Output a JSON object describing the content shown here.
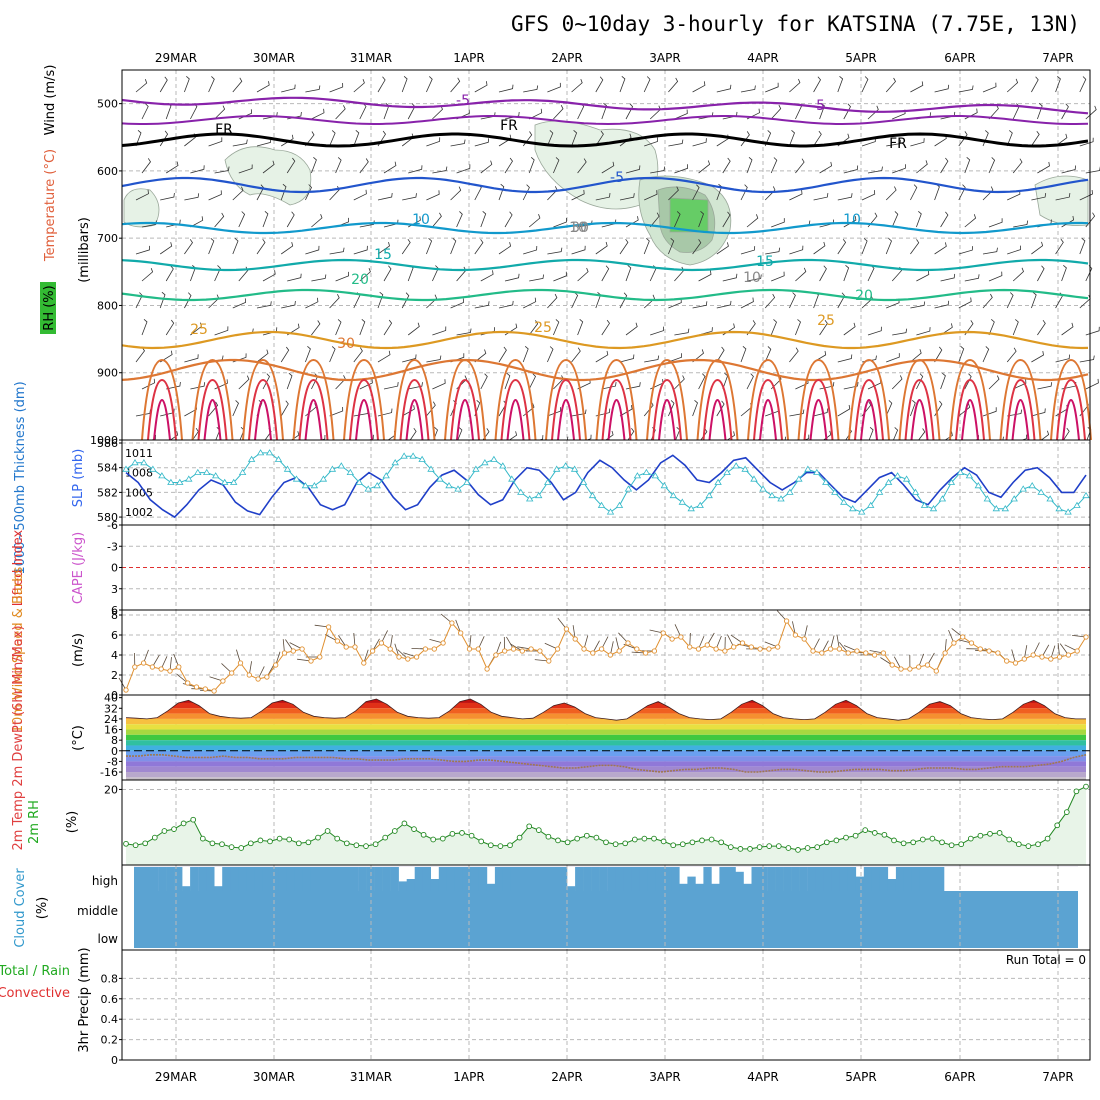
{
  "title": "GFS 0~10day 3-hourly for KATSINA (7.75E, 13N)",
  "dates": [
    "29MAR",
    "30MAR",
    "31MAR",
    "1APR",
    "2APR",
    "3APR",
    "4APR",
    "5APR",
    "6APR",
    "7APR"
  ],
  "colors": {
    "temperature": "#e0603c",
    "wind": "#000000",
    "rh_box": "#33bb33",
    "thickness": "#2277cc",
    "slp": "#3366ee",
    "lifted_index": "#e03030",
    "cape": "#cc55cc",
    "wind10m": "#e08a20",
    "temp_label": "#e04040",
    "rh2m": "#22aa22",
    "cloud": "#3399cc",
    "precip_total": "#22aa22",
    "precip_conv": "#e03030"
  },
  "chart_data": [
    {
      "type": "contour",
      "panel": "upper-air",
      "ylabel": "(millibars)",
      "side_labels": {
        "temperature": "Temperature (°C)",
        "wind": "Wind (m/s)",
        "rh": "RH (%)"
      },
      "y_ticks": [
        "500",
        "600",
        "700",
        "800",
        "900",
        "1000"
      ],
      "ylim": [
        450,
        1000
      ],
      "isotherm_labels": [
        "-5",
        "-5",
        "-5",
        "FR",
        "FR",
        "FR",
        "-5",
        "10",
        "10",
        "10",
        "15",
        "15",
        "20",
        "20",
        "25",
        "25",
        "25",
        "30",
        "10",
        "30"
      ],
      "isotherms_c": [
        -5,
        0,
        5,
        10,
        15,
        20,
        25,
        30
      ],
      "rh_shading": [
        "70",
        "80",
        "90"
      ]
    },
    {
      "type": "line",
      "panel": "thickness-slp",
      "left_label": "1000~500mb Thickness (dm)",
      "right_label": "SLP (mb)",
      "left_ticks": [
        "586",
        "584",
        "582",
        "580"
      ],
      "right_ticks": [
        "1011",
        "1008",
        "1005",
        "1002"
      ],
      "thickness_dm": [
        583.6,
        582.8,
        581.4,
        580.6,
        580.0,
        581.0,
        582.2,
        583.0,
        582.6,
        581.2,
        580.5,
        580.2,
        581.6,
        582.8,
        583.2,
        582.4,
        581.0,
        580.6,
        581.0,
        582.8,
        583.6,
        583.0,
        581.6,
        580.6,
        581.0,
        582.4,
        583.4,
        583.8,
        583.0,
        581.8,
        581.0,
        581.4,
        583.0,
        584.0,
        583.8,
        582.8,
        581.4,
        582.0,
        583.6,
        584.6,
        584.0,
        583.0,
        582.2,
        583.0,
        584.4,
        585.0,
        584.2,
        583.0,
        582.8,
        583.6,
        584.6,
        584.8,
        583.8,
        582.8,
        582.2,
        582.8,
        583.6,
        583.6,
        582.6,
        581.6,
        581.2,
        582.2,
        583.2,
        583.6,
        582.6,
        581.4,
        581.0,
        582.2,
        583.2,
        584.0,
        583.4,
        582.0,
        581.6,
        582.8,
        583.8,
        584.0,
        583.2,
        582.0,
        582.0,
        583.4
      ],
      "slp_mb": [
        1008.5,
        1009.5,
        1009.5,
        1008.5,
        1007.5,
        1006.5,
        1006.5,
        1007.0,
        1008.0,
        1008.0,
        1007.5,
        1006.5,
        1006.5,
        1008.0,
        1010.0,
        1011.0,
        1011.0,
        1010.0,
        1008.5,
        1007.0,
        1006.0,
        1006.0,
        1007.0,
        1008.5,
        1009.0,
        1008.0,
        1006.5,
        1005.5,
        1006.0,
        1007.5,
        1009.5,
        1010.5,
        1010.5,
        1010.0,
        1008.5,
        1007.0,
        1006.0,
        1005.5,
        1006.5,
        1008.5,
        1009.5,
        1010.0,
        1009.0,
        1007.0,
        1005.0,
        1004.0,
        1004.5,
        1006.5,
        1008.5,
        1009.0,
        1008.5,
        1006.5,
        1004.5,
        1003.0,
        1002.0,
        1003.0,
        1005.5,
        1007.5,
        1008.0,
        1007.5,
        1006.0,
        1004.5,
        1003.5,
        1002.5,
        1003.0,
        1004.5,
        1006.5,
        1008.0,
        1009.0,
        1008.5,
        1007.0,
        1005.5,
        1004.5,
        1004.0,
        1005.0,
        1007.0,
        1008.5,
        1008.0,
        1006.5,
        1005.0,
        1003.5,
        1002.5,
        1002.0,
        1003.0,
        1005.0,
        1006.5,
        1007.5,
        1007.0,
        1005.0,
        1003.0,
        1002.5,
        1004.0,
        1006.5,
        1008.0,
        1007.5,
        1006.0,
        1004.0,
        1002.5,
        1002.5,
        1004.0,
        1005.5,
        1006.0,
        1005.0,
        1004.0,
        1002.5,
        1002.0,
        1003.0,
        1004.5
      ]
    },
    {
      "type": "line",
      "panel": "stability",
      "left_label": "Lifted Index",
      "right_label": "CAPE (J/kg)",
      "y_ticks": [
        "-6",
        "-3",
        "0",
        "3",
        "6"
      ],
      "ylim": [
        -6,
        6
      ],
      "lifted_index": [],
      "cape": []
    },
    {
      "type": "line",
      "panel": "wind10m",
      "left_label": "10m Wind Speed & Barbs",
      "unit": "(m/s)",
      "y_ticks": [
        "0",
        "2",
        "4",
        "6",
        "8"
      ],
      "ylim": [
        0,
        8.5
      ],
      "speed_ms": [
        0.5,
        2.8,
        3.2,
        2.8,
        2.6,
        2.4,
        2.8,
        1.2,
        0.8,
        0.6,
        0.4,
        1.4,
        2.2,
        3.2,
        2.0,
        1.6,
        1.8,
        3.0,
        4.2,
        4.4,
        4.6,
        3.4,
        3.8,
        6.8,
        5.4,
        4.8,
        4.8,
        3.2,
        4.4,
        5.2,
        4.6,
        3.8,
        3.6,
        3.8,
        4.6,
        4.6,
        5.2,
        7.2,
        6.2,
        4.6,
        4.6,
        2.6,
        4.0,
        4.4,
        4.6,
        4.4,
        4.6,
        4.4,
        3.4,
        4.6,
        6.6,
        5.6,
        4.6,
        4.2,
        4.6,
        4.0,
        4.4,
        5.2,
        4.6,
        4.2,
        4.4,
        6.2,
        5.6,
        5.8,
        4.8,
        4.6,
        5.0,
        4.6,
        4.4,
        4.8,
        5.2,
        4.8,
        4.6,
        4.6,
        4.8,
        7.4,
        6.0,
        5.6,
        4.4,
        4.2,
        4.6,
        4.6,
        4.2,
        4.4,
        4.2,
        4.0,
        4.2,
        3.0,
        2.6,
        2.6,
        2.8,
        3.0,
        2.4,
        4.2,
        5.2,
        5.8,
        5.2,
        4.6,
        4.4,
        4.2,
        3.4,
        3.2,
        3.6,
        4.0,
        3.8,
        3.6,
        3.8,
        4.0,
        4.4,
        5.8
      ]
    },
    {
      "type": "area",
      "panel": "temperature",
      "left_label": "2m Temp 2m DewPt (6hr Min/Max)",
      "unit": "(°C)",
      "y_ticks": [
        "40",
        "32",
        "24",
        "16",
        "8",
        "0",
        "-8",
        "-16"
      ],
      "ylim": [
        -22,
        42
      ],
      "temp_c": [
        25,
        24.5,
        24,
        25,
        30,
        36,
        38,
        34,
        28,
        26,
        25,
        24.5,
        25,
        30,
        36,
        38,
        35,
        29,
        26,
        25,
        24.5,
        25,
        30,
        37,
        39,
        35,
        29,
        26,
        25,
        24.5,
        25,
        30,
        37,
        39,
        35,
        29,
        26,
        25,
        24,
        24.5,
        29,
        34,
        36,
        33,
        28,
        25,
        24,
        23,
        24,
        29,
        34,
        37,
        33,
        28,
        25,
        24,
        23.5,
        24,
        29,
        35,
        38,
        34,
        28,
        25,
        24,
        23.5,
        24,
        29,
        35,
        38,
        34,
        28,
        25,
        24,
        23,
        24,
        29,
        35,
        37,
        34,
        28,
        25,
        24,
        23.5,
        24,
        29,
        35,
        38,
        34,
        28,
        25,
        24,
        24
      ],
      "dewpt_c": [
        -4,
        -4,
        -3,
        -3,
        -4,
        -5,
        -5,
        -5,
        -4,
        -5,
        -5,
        -6,
        -6,
        -6,
        -5,
        -5,
        -5,
        -5,
        -6,
        -6,
        -7,
        -7,
        -7,
        -6,
        -6,
        -6,
        -7,
        -8,
        -8,
        -7,
        -7,
        -8,
        -9,
        -10,
        -11,
        -12,
        -13,
        -13,
        -12,
        -11,
        -11,
        -12,
        -14,
        -15,
        -16,
        -15,
        -14,
        -14,
        -13,
        -13,
        -14,
        -16,
        -16,
        -15,
        -14,
        -14,
        -15,
        -16,
        -16,
        -15,
        -14,
        -14,
        -14,
        -15,
        -15,
        -14,
        -13,
        -13,
        -13,
        -14,
        -14,
        -13,
        -12,
        -12,
        -12,
        -11,
        -10,
        -8,
        -5,
        -3
      ]
    },
    {
      "type": "line",
      "panel": "rh2m",
      "left_label": "2m RH",
      "unit": "(%)",
      "y_ticks": [
        "20"
      ],
      "ylim": [
        4,
        22
      ],
      "rh_pct": [
        8.5,
        8.2,
        8.6,
        9.8,
        11.2,
        11.6,
        12.8,
        13.6,
        9.6,
        8.6,
        8.4,
        7.8,
        7.6,
        8.6,
        9.2,
        9.0,
        9.6,
        9.4,
        8.6,
        8.8,
        9.8,
        11.2,
        9.6,
        8.6,
        8.2,
        8.0,
        8.4,
        9.8,
        11.2,
        12.8,
        11.6,
        10.4,
        9.4,
        9.6,
        10.6,
        10.8,
        10.2,
        9.0,
        8.2,
        8.0,
        8.2,
        9.8,
        12.2,
        11.4,
        10.0,
        9.2,
        8.8,
        9.6,
        10.2,
        9.8,
        8.8,
        8.4,
        8.6,
        9.4,
        9.6,
        9.6,
        9.0,
        8.2,
        8.4,
        8.8,
        9.2,
        9.4,
        8.8,
        7.8,
        7.4,
        7.4,
        7.8,
        8.0,
        8.0,
        7.6,
        7.2,
        7.6,
        7.8,
        8.8,
        9.2,
        9.8,
        10.2,
        11.4,
        10.8,
        10.4,
        9.2,
        8.6,
        8.8,
        9.4,
        9.6,
        8.8,
        8.2,
        8.4,
        9.6,
        10.2,
        10.6,
        10.8,
        9.4,
        8.4,
        8.0,
        8.4,
        9.6,
        12.4,
        15.2,
        19.6,
        20.6
      ]
    },
    {
      "type": "bar",
      "panel": "cloud",
      "left_label": "Cloud Cover",
      "unit": "(%)",
      "levels": [
        "high",
        "middle",
        "low"
      ],
      "high_cover_pct": [
        100,
        100,
        100,
        100,
        100,
        100,
        20,
        100,
        100,
        100,
        20,
        100,
        100,
        100,
        100,
        100,
        100,
        100,
        100,
        100,
        100,
        100,
        100,
        100,
        100,
        100,
        100,
        100,
        100,
        100,
        100,
        100,
        100,
        40,
        50,
        100,
        100,
        50,
        100,
        100,
        100,
        100,
        100,
        100,
        30,
        100,
        100,
        100,
        100,
        100,
        100,
        100,
        100,
        100,
        20,
        100,
        100,
        100,
        100,
        100,
        100,
        100,
        100,
        100,
        100,
        100,
        100,
        100,
        30,
        60,
        30,
        100,
        30,
        100,
        100,
        80,
        30,
        100,
        100,
        100,
        100,
        100,
        100,
        100,
        100,
        100,
        100,
        100,
        100,
        100,
        60,
        100,
        100,
        100,
        50,
        100,
        100,
        100,
        100,
        100,
        100
      ],
      "low_mid_cover_pct": [
        100
      ]
    },
    {
      "type": "bar",
      "panel": "precip",
      "left_label": "Total / Rain",
      "left_label2": "Convective",
      "unit": "3hr Precip (mm)",
      "y_ticks": [
        "0",
        "0.2",
        "0.4",
        "0.6",
        "0.8"
      ],
      "ylim": [
        0,
        1
      ],
      "run_total": "Run Total = 0",
      "precip_mm": []
    }
  ]
}
